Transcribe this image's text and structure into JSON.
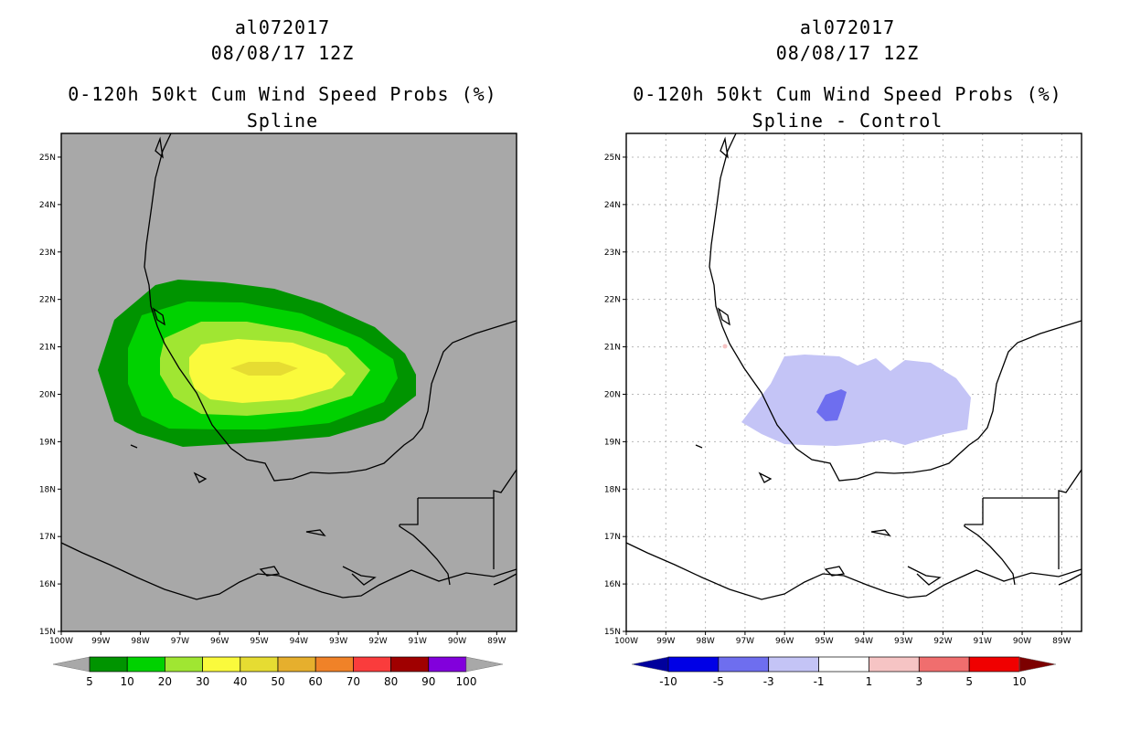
{
  "panels": [
    {
      "id": "spline",
      "storm_id": "al072017",
      "datetime": "08/08/17 12Z",
      "product": "0-120h 50kt Cum Wind Speed Probs (%)",
      "subtitle": "Spline",
      "background": "#a8a8a8",
      "colorbar": {
        "labels": [
          "5",
          "10",
          "20",
          "30",
          "40",
          "50",
          "60",
          "70",
          "80",
          "90",
          "100"
        ],
        "colors": [
          "#009400",
          "#00d200",
          "#a0e632",
          "#fafa3c",
          "#e6dc32",
          "#e6af2d",
          "#f08228",
          "#fa3c3c",
          "#a00000",
          "#8200dc"
        ],
        "under_color": "#a8a8a8",
        "over_color": "#a8a8a8"
      }
    },
    {
      "id": "diff",
      "storm_id": "al072017",
      "datetime": "08/08/17 12Z",
      "product": "0-120h 50kt Cum Wind Speed Probs (%)",
      "subtitle": "Spline - Control",
      "background": "#ffffff",
      "colorbar": {
        "labels": [
          "-10",
          "-5",
          "-3",
          "-1",
          "1",
          "3",
          "5",
          "10"
        ],
        "colors": [
          "#0000e6",
          "#6e6eef",
          "#c4c4f6",
          "#ffffff",
          "#f6c4c4",
          "#f06e6e",
          "#f00000"
        ],
        "under_color": "#00009c",
        "over_color": "#7c0000"
      }
    }
  ],
  "axes": {
    "lat_labels": [
      "25N",
      "24N",
      "23N",
      "22N",
      "21N",
      "20N",
      "19N",
      "18N",
      "17N",
      "16N",
      "15N"
    ],
    "lat_values": [
      25,
      24,
      23,
      22,
      21,
      20,
      19,
      18,
      17,
      16,
      15
    ],
    "lon_labels": [
      "100W",
      "99W",
      "98W",
      "97W",
      "96W",
      "95W",
      "94W",
      "93W",
      "92W",
      "91W",
      "90W",
      "89W"
    ],
    "lon_values": [
      -100,
      -99,
      -98,
      -97,
      -96,
      -95,
      -94,
      -93,
      -92,
      -91,
      -90,
      -89
    ],
    "lon_range": [
      -100,
      -88.5
    ],
    "lat_range": [
      15,
      25.5
    ]
  }
}
